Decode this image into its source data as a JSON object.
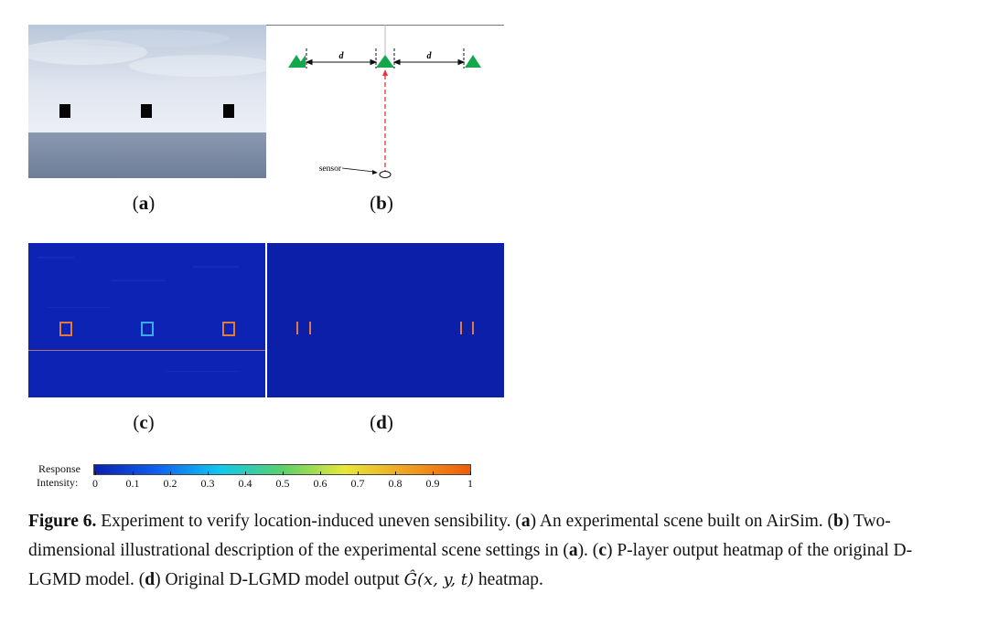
{
  "panels": {
    "a": {
      "label": "a"
    },
    "b": {
      "label": "b",
      "distance_label": "d",
      "sensor_label": "sensor"
    },
    "c": {
      "label": "c"
    },
    "d": {
      "label": "d"
    }
  },
  "colorbar": {
    "title": "Response",
    "intensity_label": "Intensity:",
    "ticks": [
      "0",
      "0.1",
      "0.2",
      "0.3",
      "0.4",
      "0.5",
      "0.6",
      "0.7",
      "0.8",
      "0.9",
      "1"
    ],
    "colors": {
      "low": "#0a1fb0",
      "mid": "#5ad06a",
      "high": "#f05a0a"
    }
  },
  "caption": {
    "figure": "Figure 6.",
    "intro": " Experiment to verify location-induced uneven sensibility. (",
    "a1": "a",
    "t1": ") An experimental scene built on AirSim. (",
    "b1": "b",
    "t2": ") Two-dimensional illustrational description of the experimental scene settings in (",
    "a2": "a",
    "t3": "). (",
    "c1": "c",
    "t4": ") P-layer output heatmap of the original D-LGMD model. (",
    "d1": "d",
    "t5": ") Original D-LGMD model output ",
    "math": "Ĝ(x, y, t)",
    "t6": " heatmap."
  }
}
